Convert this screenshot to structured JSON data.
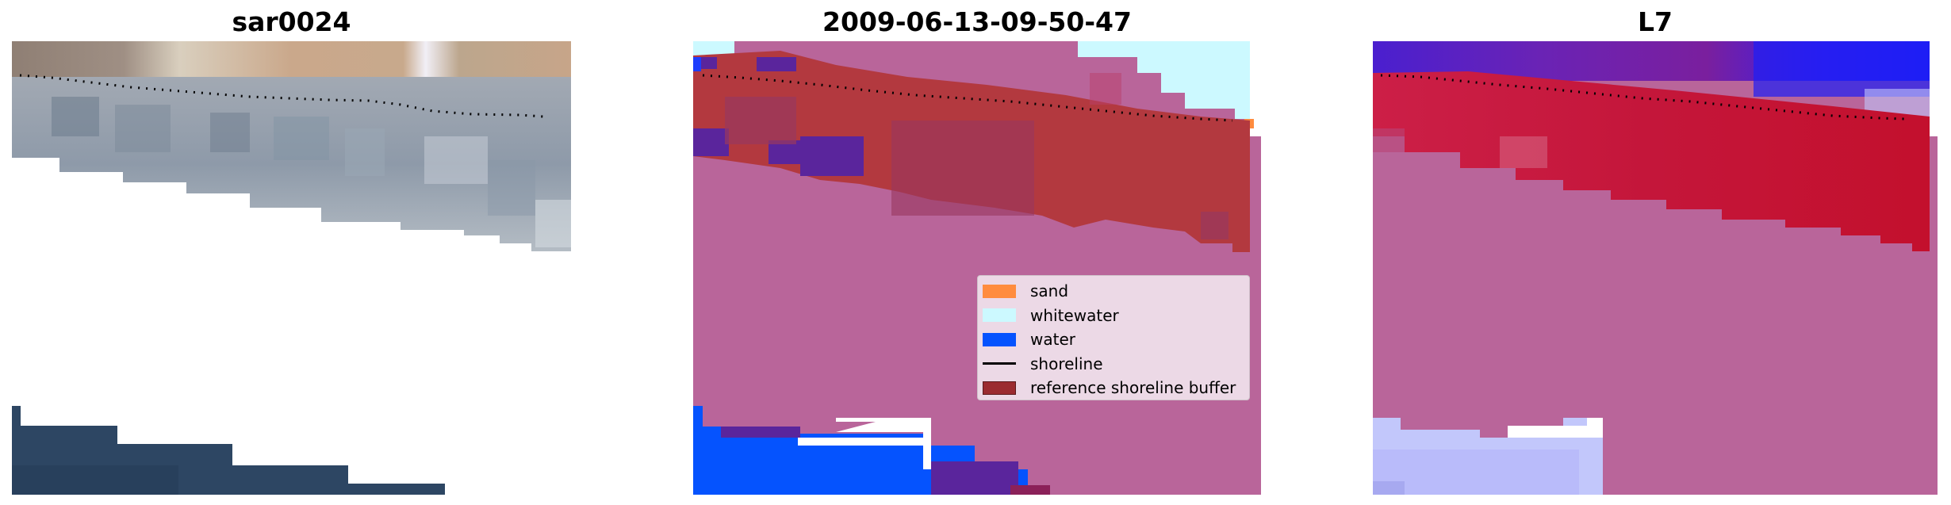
{
  "panels": [
    {
      "title": "sar0024"
    },
    {
      "title": "2009-06-13-09-50-47"
    },
    {
      "title": "L7"
    }
  ],
  "legend": {
    "items": [
      {
        "label": "sand",
        "color": "#ff8c3e",
        "kind": "patch"
      },
      {
        "label": "whitewater",
        "color": "#ccf9ff",
        "kind": "patch"
      },
      {
        "label": "water",
        "color": "#0553fe",
        "kind": "patch"
      },
      {
        "label": "shoreline",
        "color": "#000000",
        "kind": "line"
      },
      {
        "label": "reference shoreline buffer",
        "color": "#9b2b30",
        "kind": "patch"
      }
    ]
  },
  "colors": {
    "sand": "#ff8c3e",
    "whitewater": "#ccf9ff",
    "water": "#0553fe",
    "buffer": "#9b2b30",
    "land_overlay": "#b9659a",
    "white_water_purple": "#5a259c",
    "ms_red": "#c3102d",
    "ms_blue": "#1e1ef5",
    "ms_lightblue": "#c2c7fb"
  }
}
